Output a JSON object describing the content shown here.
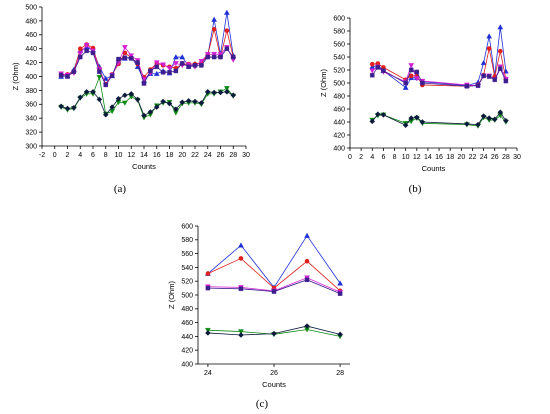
{
  "figure": {
    "panel_count": 3
  },
  "chart_data": [
    {
      "panel_label": "(a)",
      "type": "line",
      "xlabel": "Counts",
      "ylabel": "Z (Ohm)",
      "xlim": [
        -2,
        30
      ],
      "ylim": [
        300,
        500
      ],
      "xticks": [
        -2,
        0,
        2,
        4,
        6,
        8,
        10,
        12,
        14,
        16,
        18,
        20,
        22,
        24,
        26,
        28,
        30
      ],
      "yticks": [
        300,
        320,
        340,
        360,
        380,
        400,
        420,
        440,
        460,
        480,
        500
      ],
      "grid": false,
      "legend": "none",
      "series": [
        {
          "color": "#1f2fd6",
          "marker": "triangle",
          "x": [
            1,
            2,
            3,
            4,
            5,
            6,
            7,
            8,
            9,
            10,
            11,
            12,
            13,
            14,
            15,
            16,
            17,
            18,
            19,
            20,
            21,
            22,
            23,
            24,
            25,
            26,
            27,
            28
          ],
          "y": [
            400,
            401,
            410,
            437,
            442,
            438,
            414,
            397,
            401,
            422,
            426,
            428,
            414,
            394,
            404,
            404,
            408,
            405,
            428,
            428,
            415,
            418,
            419,
            430,
            482,
            432,
            492,
            430
          ]
        },
        {
          "color": "#e0201c",
          "marker": "circle",
          "x": [
            1,
            2,
            3,
            4,
            5,
            6,
            7,
            8,
            9,
            10,
            11,
            12,
            13,
            14,
            15,
            16,
            17,
            18,
            19,
            20,
            21,
            22,
            23,
            24,
            25,
            26,
            27,
            28
          ],
          "y": [
            402,
            403,
            407,
            440,
            446,
            441,
            411,
            389,
            403,
            418,
            434,
            427,
            418,
            399,
            410,
            419,
            416,
            414,
            412,
            418,
            418,
            418,
            420,
            431,
            468,
            428,
            466,
            428
          ]
        },
        {
          "color": "#d21ed2",
          "marker": "triangle-down",
          "x": [
            1,
            2,
            3,
            4,
            5,
            6,
            7,
            8,
            9,
            10,
            11,
            12,
            13,
            14,
            15,
            16,
            17,
            18,
            19,
            20,
            21,
            22,
            23,
            24,
            25,
            26,
            27,
            28
          ],
          "y": [
            404,
            402,
            405,
            433,
            445,
            437,
            410,
            388,
            402,
            420,
            442,
            430,
            423,
            396,
            405,
            420,
            417,
            412,
            419,
            416,
            417,
            414,
            422,
            432,
            432,
            432,
            442,
            424
          ]
        },
        {
          "color": "#3d1f8e",
          "marker": "square",
          "x": [
            1,
            2,
            3,
            4,
            5,
            6,
            7,
            8,
            9,
            10,
            11,
            12,
            13,
            14,
            15,
            16,
            17,
            18,
            19,
            20,
            21,
            22,
            23,
            24,
            25,
            26,
            27,
            28
          ],
          "y": [
            402,
            400,
            407,
            428,
            437,
            434,
            407,
            388,
            401,
            425,
            427,
            426,
            420,
            390,
            408,
            414,
            406,
            406,
            408,
            419,
            414,
            416,
            416,
            428,
            428,
            428,
            440,
            428
          ]
        },
        {
          "color": "#0e8a14",
          "marker": "triangle-down",
          "x": [
            1,
            2,
            3,
            4,
            5,
            6,
            7,
            8,
            9,
            10,
            11,
            12,
            13,
            14,
            15,
            16,
            17,
            18,
            19,
            20,
            21,
            22,
            23,
            24,
            25,
            26,
            27,
            28
          ],
          "y": [
            356,
            352,
            354,
            369,
            375,
            375,
            399,
            346,
            350,
            363,
            362,
            371,
            366,
            341,
            345,
            358,
            362,
            363,
            348,
            361,
            362,
            362,
            360,
            375,
            375,
            378,
            383,
            372
          ]
        },
        {
          "color": "#0b1a3a",
          "marker": "diamond",
          "x": [
            1,
            2,
            3,
            4,
            5,
            6,
            7,
            8,
            9,
            10,
            11,
            12,
            13,
            14,
            15,
            16,
            17,
            18,
            19,
            20,
            21,
            22,
            23,
            24,
            25,
            26,
            27,
            28
          ],
          "y": [
            357,
            354,
            355,
            370,
            378,
            378,
            367,
            345,
            356,
            368,
            373,
            375,
            367,
            344,
            349,
            356,
            364,
            361,
            353,
            363,
            365,
            364,
            362,
            378,
            377,
            377,
            378,
            373
          ]
        }
      ]
    },
    {
      "panel_label": "(b)",
      "type": "line",
      "xlabel": "Counts",
      "ylabel": "Z (Ohm)",
      "xlim": [
        0,
        30
      ],
      "ylim": [
        400,
        600
      ],
      "xticks": [
        0,
        2,
        4,
        6,
        8,
        10,
        12,
        14,
        16,
        18,
        20,
        22,
        24,
        26,
        28,
        30
      ],
      "yticks": [
        400,
        420,
        440,
        460,
        480,
        500,
        520,
        540,
        560,
        580,
        600
      ],
      "grid": false,
      "legend": "none",
      "series": [
        {
          "color": "#1f2fd6",
          "marker": "triangle",
          "x": [
            4,
            5,
            6,
            10,
            11,
            12,
            13,
            21,
            23,
            24,
            25,
            26,
            27,
            28
          ],
          "y": [
            525,
            527,
            519,
            493,
            508,
            508,
            502,
            496,
            501,
            531,
            572,
            512,
            586,
            518
          ]
        },
        {
          "color": "#e0201c",
          "marker": "circle",
          "x": [
            4,
            5,
            6,
            10,
            11,
            12,
            13,
            21,
            23,
            24,
            25,
            26,
            27,
            28
          ],
          "y": [
            529,
            530,
            524,
            505,
            511,
            511,
            497,
            495,
            497,
            512,
            553,
            510,
            549,
            506
          ]
        },
        {
          "color": "#d21ed2",
          "marker": "triangle-down",
          "x": [
            4,
            5,
            6,
            10,
            11,
            12,
            13,
            21,
            23,
            24,
            25,
            26,
            27,
            28
          ],
          "y": [
            519,
            525,
            517,
            502,
            527,
            507,
            503,
            497,
            496,
            511,
            511,
            505,
            525,
            506
          ]
        },
        {
          "color": "#3d1f8e",
          "marker": "square",
          "x": [
            4,
            5,
            6,
            10,
            11,
            12,
            13,
            21,
            23,
            24,
            25,
            26,
            27,
            28
          ],
          "y": [
            512,
            524,
            519,
            500,
            520,
            517,
            500,
            495,
            496,
            511,
            510,
            505,
            522,
            503
          ]
        },
        {
          "color": "#0e8a14",
          "marker": "triangle-down",
          "x": [
            4,
            5,
            6,
            10,
            11,
            12,
            13,
            21,
            23,
            24,
            25,
            26,
            27,
            28
          ],
          "y": [
            443,
            450,
            451,
            438,
            441,
            446,
            438,
            436,
            434,
            447,
            443,
            443,
            450,
            440
          ]
        },
        {
          "color": "#0b1a3a",
          "marker": "diamond",
          "x": [
            4,
            5,
            6,
            10,
            11,
            12,
            13,
            21,
            23,
            24,
            25,
            26,
            27,
            28
          ],
          "y": [
            441,
            452,
            451,
            435,
            446,
            447,
            440,
            437,
            436,
            449,
            446,
            444,
            455,
            442
          ]
        }
      ]
    },
    {
      "panel_label": "(c)",
      "type": "line",
      "xlabel": "Counts",
      "ylabel": "Z (Ohm)",
      "xlim": [
        23.7,
        28.3
      ],
      "ylim": [
        400,
        600
      ],
      "xticks": [
        24,
        26,
        28
      ],
      "yticks": [
        400,
        420,
        440,
        460,
        480,
        500,
        520,
        540,
        560,
        580,
        600
      ],
      "grid": false,
      "legend": "none",
      "series": [
        {
          "color": "#1f2fd6",
          "marker": "triangle",
          "x": [
            24,
            25,
            26,
            27,
            28
          ],
          "y": [
            531,
            572,
            511,
            586,
            517
          ]
        },
        {
          "color": "#e0201c",
          "marker": "circle",
          "x": [
            24,
            25,
            26,
            27,
            28
          ],
          "y": [
            531,
            553,
            510,
            549,
            506
          ]
        },
        {
          "color": "#d21ed2",
          "marker": "triangle-down",
          "x": [
            24,
            25,
            26,
            27,
            28
          ],
          "y": [
            512,
            511,
            506,
            525,
            504
          ]
        },
        {
          "color": "#3d1f8e",
          "marker": "square",
          "x": [
            24,
            25,
            26,
            27,
            28
          ],
          "y": [
            510,
            509,
            505,
            522,
            502
          ]
        },
        {
          "color": "#0e8a14",
          "marker": "triangle-down",
          "x": [
            24,
            25,
            26,
            27,
            28
          ],
          "y": [
            449,
            447,
            443,
            450,
            440
          ]
        },
        {
          "color": "#0b1a3a",
          "marker": "diamond",
          "x": [
            24,
            25,
            26,
            27,
            28
          ],
          "y": [
            445,
            442,
            444,
            455,
            443
          ]
        }
      ]
    }
  ]
}
